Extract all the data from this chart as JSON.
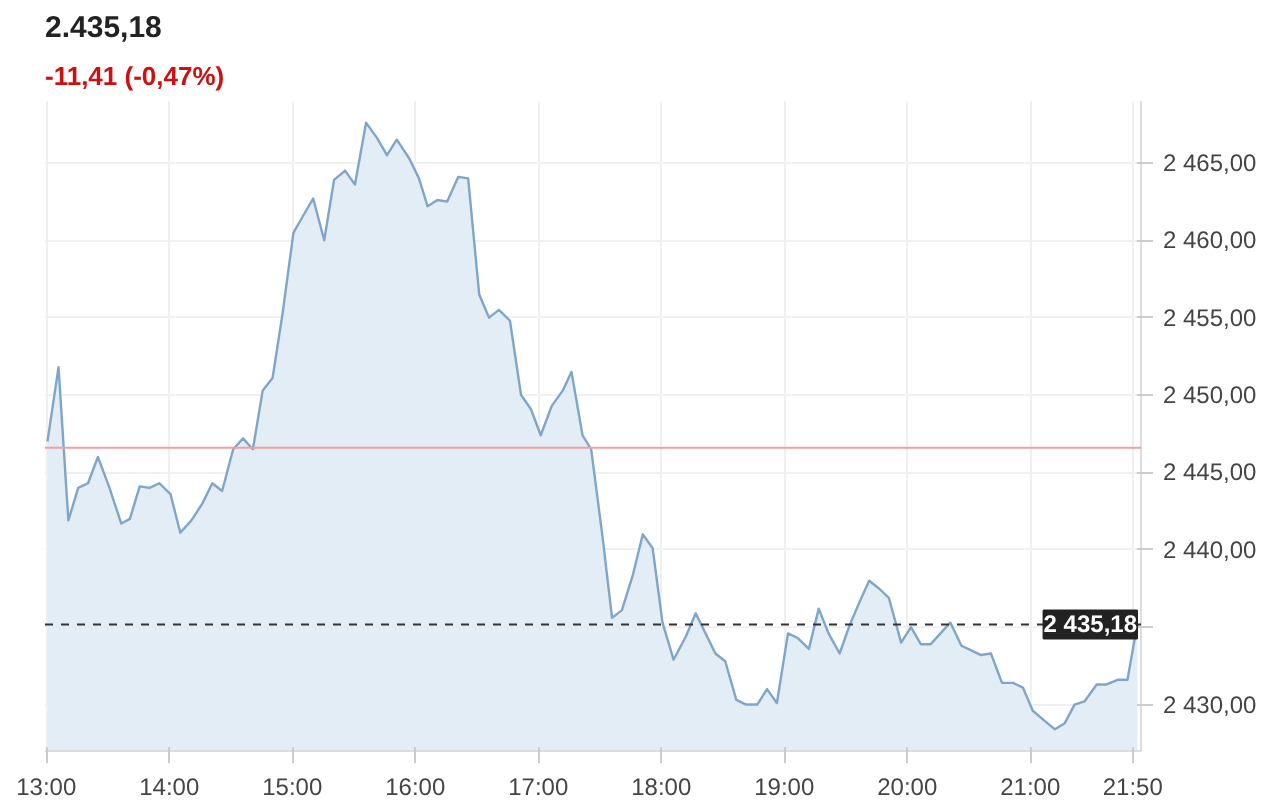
{
  "chart_data": {
    "type": "area",
    "title": "2.435,18",
    "subtitle": "-11,41 (-0,47%)",
    "x": [
      13.01,
      13.1,
      13.18,
      13.26,
      13.34,
      13.42,
      13.51,
      13.61,
      13.68,
      13.76,
      13.84,
      13.92,
      14.01,
      14.09,
      14.18,
      14.27,
      14.35,
      14.43,
      14.52,
      14.6,
      14.68,
      14.76,
      14.84,
      14.92,
      15.01,
      15.09,
      15.17,
      15.26,
      15.34,
      15.43,
      15.51,
      15.6,
      15.69,
      15.77,
      15.85,
      15.95,
      16.03,
      16.1,
      16.18,
      16.26,
      16.35,
      16.43,
      16.52,
      16.6,
      16.68,
      16.77,
      16.86,
      16.94,
      17.02,
      17.11,
      17.2,
      17.27,
      17.36,
      17.43,
      17.52,
      17.6,
      17.68,
      17.77,
      17.85,
      17.93,
      18.01,
      18.1,
      18.2,
      18.28,
      18.36,
      18.44,
      18.52,
      18.61,
      18.69,
      18.78,
      18.86,
      18.94,
      19.03,
      19.11,
      19.2,
      19.28,
      19.36,
      19.45,
      19.53,
      19.61,
      19.69,
      19.77,
      19.85,
      19.95,
      20.03,
      20.11,
      20.19,
      20.27,
      20.35,
      20.44,
      20.52,
      20.6,
      20.68,
      20.77,
      20.86,
      20.94,
      21.02,
      21.11,
      21.2,
      21.28,
      21.36,
      21.44,
      21.54,
      21.62,
      21.71,
      21.79,
      21.87
    ],
    "series": [
      {
        "color": "#7fa6c8",
        "values": [
          2447.0,
          2451.8,
          2441.9,
          2444.0,
          2444.3,
          2446.0,
          2444.1,
          2441.7,
          2442.0,
          2444.1,
          2444.0,
          2444.3,
          2443.6,
          2441.1,
          2441.9,
          2443.0,
          2444.3,
          2443.8,
          2446.5,
          2447.2,
          2446.5,
          2450.3,
          2451.1,
          2455.2,
          2460.5,
          2461.6,
          2462.7,
          2460.0,
          2463.9,
          2464.5,
          2463.6,
          2467.6,
          2466.6,
          2465.5,
          2466.5,
          2465.3,
          2464.0,
          2462.2,
          2462.6,
          2462.5,
          2464.1,
          2464.0,
          2456.5,
          2455.0,
          2455.5,
          2454.8,
          2450.0,
          2449.1,
          2447.4,
          2449.3,
          2450.3,
          2451.5,
          2447.4,
          2446.5,
          2441.0,
          2435.6,
          2436.1,
          2438.4,
          2441.0,
          2440.1,
          2435.3,
          2432.9,
          2434.4,
          2435.9,
          2434.6,
          2433.3,
          2432.8,
          2430.3,
          2430.0,
          2430.0,
          2431.0,
          2430.1,
          2434.6,
          2434.3,
          2433.6,
          2436.2,
          2434.6,
          2433.3,
          2435.1,
          2436.6,
          2438.0,
          2437.5,
          2436.9,
          2434.0,
          2435.0,
          2433.9,
          2433.9,
          2434.6,
          2435.3,
          2433.8,
          2433.5,
          2433.2,
          2433.3,
          2431.4,
          2431.4,
          2431.1,
          2429.6,
          2429.0,
          2428.4,
          2428.8,
          2430.0,
          2430.2,
          2431.3,
          2431.3,
          2431.6,
          2431.6,
          2435.2
        ]
      }
    ],
    "xlim": [
      12.99,
      21.9
    ],
    "xticks": [
      {
        "value": 13,
        "label": "13:00"
      },
      {
        "value": 14,
        "label": "14:00"
      },
      {
        "value": 15,
        "label": "15:00"
      },
      {
        "value": 16,
        "label": "16:00"
      },
      {
        "value": 17,
        "label": "17:00"
      },
      {
        "value": 18,
        "label": "18:00"
      },
      {
        "value": 19,
        "label": "19:00"
      },
      {
        "value": 20,
        "label": "20:00"
      },
      {
        "value": 21,
        "label": "21:00"
      },
      {
        "value": 21.833,
        "label": "21:50"
      }
    ],
    "ylim": [
      2427,
      2469
    ],
    "yticks": [
      {
        "value": 2430,
        "label": "2 430,00"
      },
      {
        "value": 2435,
        "label": null
      },
      {
        "value": 2440,
        "label": "2 440,00"
      },
      {
        "value": 2445,
        "label": "2 445,00"
      },
      {
        "value": 2450,
        "label": "2 450,00"
      },
      {
        "value": 2455,
        "label": "2 455,00"
      },
      {
        "value": 2460,
        "label": "2 460,00"
      },
      {
        "value": 2465,
        "label": "2 465,00"
      }
    ],
    "ref_lines": [
      {
        "axis": "y",
        "value": 2446.59,
        "label": null,
        "color": "#f0a0a0",
        "line_style": "solid"
      },
      {
        "axis": "y",
        "value": 2435.18,
        "label": "2 435,18",
        "color": "#333333",
        "line_style": "dashed"
      }
    ],
    "grid": true
  }
}
